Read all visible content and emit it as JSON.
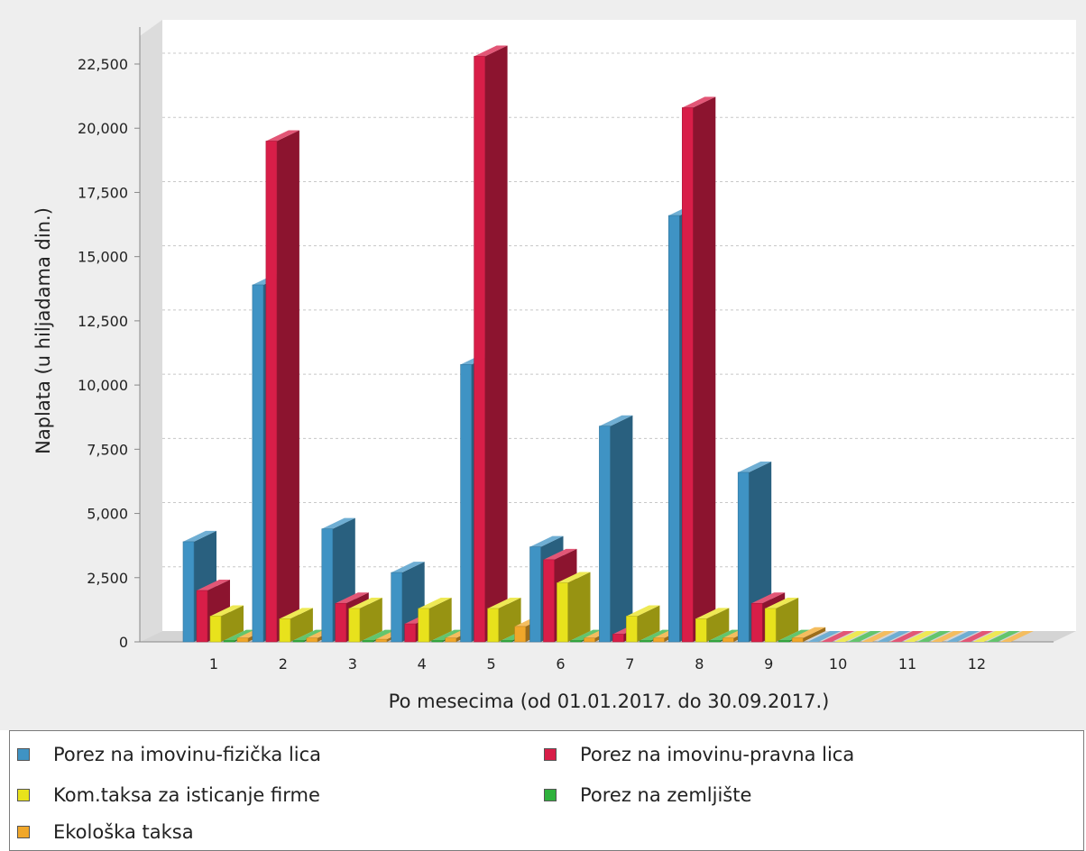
{
  "chart_data": {
    "type": "bar",
    "style": "3d-clustered",
    "xlabel": "Po mesecima (od 01.01.2017. do 30.09.2017.)",
    "ylabel": "Naplata (u hiljadama din.)",
    "ylim": [
      0,
      24000
    ],
    "yticks": [
      0,
      2500,
      5000,
      7500,
      10000,
      12500,
      15000,
      17500,
      20000,
      22500
    ],
    "ytick_labels": [
      "0",
      "2,500",
      "5,000",
      "7,500",
      "10,000",
      "12,500",
      "15,000",
      "17,500",
      "20,000",
      "22,500"
    ],
    "categories": [
      "1",
      "2",
      "3",
      "4",
      "5",
      "6",
      "7",
      "8",
      "9",
      "10",
      "11",
      "12"
    ],
    "grid": true,
    "legend_position": "bottom",
    "series": [
      {
        "name": "Porez na imovinu-fizička lica",
        "color": "#3f93c4",
        "values": [
          3900,
          13900,
          4400,
          2700,
          10800,
          3700,
          8400,
          16600,
          6600,
          0,
          0,
          0
        ]
      },
      {
        "name": "Porez na imovinu-pravna lica",
        "color": "#d81e48",
        "values": [
          2000,
          19500,
          1500,
          700,
          22800,
          3200,
          300,
          20800,
          1500,
          0,
          0,
          0
        ]
      },
      {
        "name": "Kom.taksa za isticanje firme",
        "color": "#e8e21c",
        "values": [
          1000,
          900,
          1300,
          1300,
          1300,
          2300,
          1000,
          900,
          1300,
          0,
          0,
          0
        ]
      },
      {
        "name": "Porez na zemljište",
        "color": "#2fb13c",
        "values": [
          50,
          50,
          50,
          50,
          50,
          50,
          50,
          50,
          50,
          0,
          0,
          0
        ]
      },
      {
        "name": "Ekološka taksa",
        "color": "#f0a72a",
        "values": [
          150,
          150,
          100,
          150,
          600,
          150,
          150,
          150,
          150,
          0,
          0,
          0
        ]
      }
    ]
  }
}
